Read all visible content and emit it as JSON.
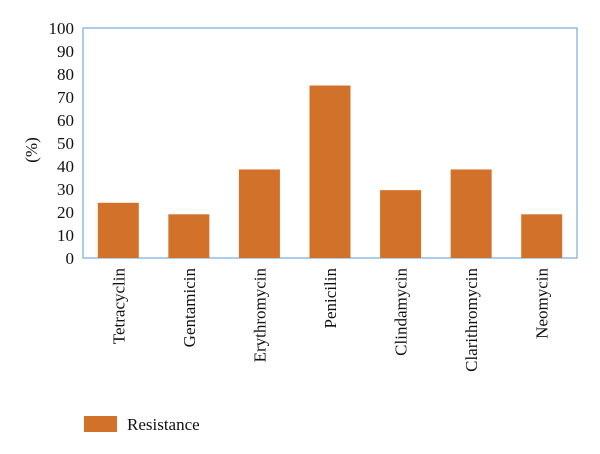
{
  "chart_data": {
    "type": "bar",
    "title": "",
    "xlabel": "",
    "ylabel": "(%)",
    "categories": [
      "Tetracyclin",
      "Gentamicin",
      "Erythromycin",
      "Penicilin",
      "Clindamycin",
      "Clarithromycin",
      "Neomycin"
    ],
    "series": [
      {
        "name": "Resistance",
        "values": [
          24,
          19,
          38.5,
          75,
          29.5,
          38.5,
          19
        ],
        "color": "#D2722A"
      }
    ],
    "ylim": [
      0,
      100
    ],
    "yticks": [
      "0",
      "10",
      "20",
      "30",
      "40",
      "50",
      "60",
      "70",
      "80",
      "90",
      "100"
    ],
    "grid": false,
    "legend_position": "bottom-left",
    "frame_color": "#5B9BD5"
  }
}
